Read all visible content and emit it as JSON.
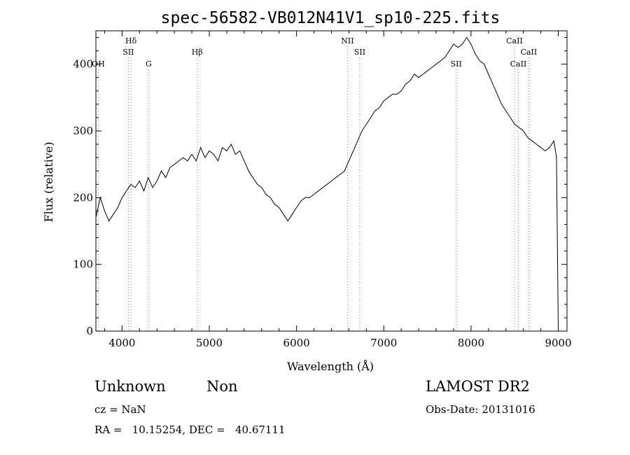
{
  "chart_data": {
    "type": "line",
    "title": "spec-56582-VB012N41V1_sp10-225.fits",
    "xlabel": "Wavelength (Å)",
    "ylabel": "Flux (relative)",
    "xlim": [
      3700,
      9100
    ],
    "ylim": [
      0,
      450
    ],
    "xticks": [
      4000,
      5000,
      6000,
      7000,
      8000,
      9000
    ],
    "yticks": [
      0,
      100,
      200,
      300,
      400
    ],
    "grid": false,
    "spectral_lines": [
      {
        "label": "OH",
        "wavelength": 3727,
        "row": 3
      },
      {
        "label": "Hδ",
        "wavelength": 4102,
        "row": 1
      },
      {
        "label": "SII",
        "wavelength": 4072,
        "row": 2
      },
      {
        "label": "G",
        "wavelength": 4305,
        "row": 3
      },
      {
        "label": "Hβ",
        "wavelength": 4861,
        "row": 2
      },
      {
        "label": "NII",
        "wavelength": 6584,
        "row": 1
      },
      {
        "label": "SII",
        "wavelength": 6725,
        "row": 2
      },
      {
        "label": "SII",
        "wavelength": 7830,
        "row": 3
      },
      {
        "label": "CaII",
        "wavelength": 8498,
        "row": 1
      },
      {
        "label": "CaII",
        "wavelength": 8662,
        "row": 2
      },
      {
        "label": "CaII",
        "wavelength": 8542,
        "row": 3
      }
    ],
    "series": [
      {
        "x": [
          3700,
          3750,
          3800,
          3850,
          3900,
          3950,
          4000,
          4050,
          4100,
          4150,
          4200,
          4250,
          4300,
          4350,
          4400,
          4450,
          4500,
          4550,
          4600,
          4650,
          4700,
          4750,
          4800,
          4850,
          4900,
          4950,
          5000,
          5050,
          5100,
          5150,
          5200,
          5250,
          5300,
          5350,
          5400,
          5450,
          5500,
          5550,
          5600,
          5650,
          5700,
          5750,
          5800,
          5850,
          5900,
          5950,
          6000,
          6050,
          6100,
          6150,
          6200,
          6250,
          6300,
          6350,
          6400,
          6450,
          6500,
          6550,
          6600,
          6650,
          6700,
          6750,
          6800,
          6850,
          6900,
          6950,
          7000,
          7050,
          7100,
          7150,
          7200,
          7250,
          7300,
          7350,
          7400,
          7450,
          7500,
          7550,
          7600,
          7650,
          7700,
          7750,
          7800,
          7850,
          7900,
          7950,
          8000,
          8050,
          8100,
          8150,
          8200,
          8250,
          8300,
          8350,
          8400,
          8450,
          8500,
          8550,
          8600,
          8650,
          8700,
          8750,
          8800,
          8850,
          8900,
          8950,
          8980,
          9000
        ],
        "y": [
          170,
          200,
          180,
          165,
          175,
          185,
          200,
          210,
          220,
          215,
          225,
          210,
          230,
          215,
          225,
          240,
          230,
          245,
          250,
          255,
          260,
          255,
          265,
          255,
          275,
          260,
          270,
          265,
          255,
          275,
          270,
          280,
          265,
          270,
          255,
          240,
          230,
          220,
          215,
          205,
          200,
          190,
          185,
          175,
          165,
          175,
          185,
          195,
          200,
          200,
          205,
          210,
          215,
          220,
          225,
          230,
          235,
          240,
          255,
          270,
          285,
          300,
          310,
          320,
          330,
          335,
          345,
          350,
          355,
          355,
          360,
          370,
          375,
          385,
          380,
          385,
          390,
          395,
          400,
          405,
          410,
          420,
          430,
          425,
          430,
          440,
          430,
          415,
          405,
          400,
          385,
          370,
          355,
          340,
          330,
          320,
          310,
          305,
          300,
          290,
          285,
          280,
          275,
          270,
          275,
          285,
          260,
          5
        ]
      }
    ]
  },
  "footer": {
    "object_class": "Unknown",
    "object_subclass": "Non",
    "survey": "LAMOST DR2",
    "redshift": "cz = NaN",
    "obs_date": "Obs-Date: 20131016",
    "coords": "RA =   10.15254, DEC =   40.67111"
  }
}
